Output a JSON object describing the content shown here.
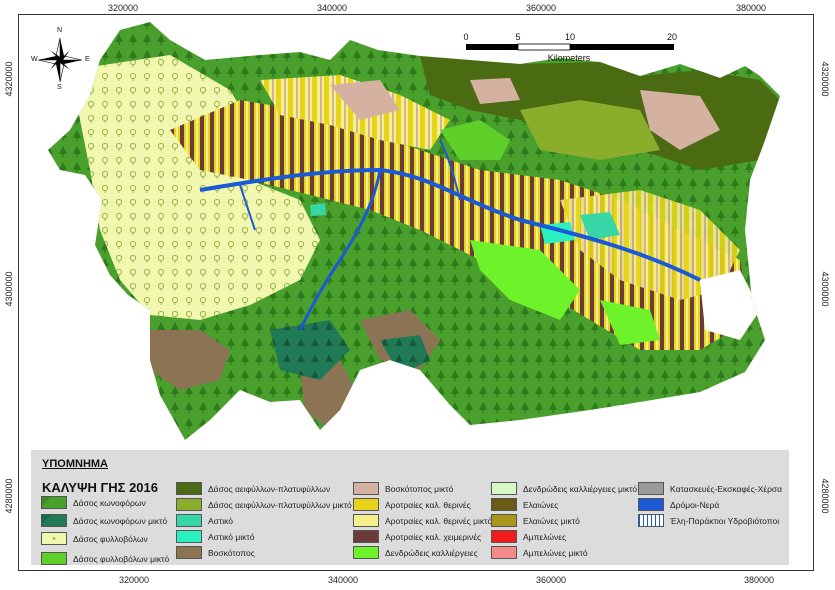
{
  "axes": {
    "x_ticks": [
      "320000",
      "340000",
      "360000",
      "380000"
    ],
    "y_ticks": [
      "4320000",
      "4300000",
      "4280000"
    ]
  },
  "compass": {
    "n": "N",
    "s": "S",
    "e": "E",
    "w": "W"
  },
  "scalebar": {
    "ticks": [
      "0",
      "5",
      "10",
      "20"
    ],
    "unit": "Kilometers"
  },
  "legend": {
    "title": "ΥΠΟΜΝΗΜΑ",
    "subtitle": "ΚΑΛΥΨΗ ΓΗΣ 2016",
    "items": [
      {
        "label": "Δάσος κωνοφόρων",
        "color": "#4aa02c",
        "icon": "tree-icon"
      },
      {
        "label": "Δάσος κωνοφόρων μικτό",
        "color": "#1f7a55",
        "icon": "tree-icon"
      },
      {
        "label": "Δάσος φυλλοβόλων",
        "color": "#f2f7b0",
        "icon": "leaf-icon"
      },
      {
        "label": "Δάσος φυλλοβόλων μικτό",
        "color": "#5fd02a",
        "icon": ""
      },
      {
        "label": "Δάσος αειφύλλων-πλατυφύλλων",
        "color": "#4b6b12",
        "icon": ""
      },
      {
        "label": "Δάσος αειφύλλων-πλατυφύλλων μικτό",
        "color": "#8aad2b",
        "icon": ""
      },
      {
        "label": "Αστικό",
        "color": "#36d6a6",
        "icon": ""
      },
      {
        "label": "Αστικό μικτό",
        "color": "#2af0c0",
        "icon": ""
      },
      {
        "label": "Βοσκότοπος",
        "color": "#8b7354",
        "icon": ""
      },
      {
        "label": "Βοσκότοπος μικτό",
        "color": "#d4b1a0",
        "icon": ""
      },
      {
        "label": "Αροτραίες καλ. θερινές",
        "color": "#e6d31a",
        "icon": ""
      },
      {
        "label": "Αροτραίες καλ. θερινές μικτό",
        "color": "#f4f08a",
        "icon": ""
      },
      {
        "label": "Αροτραίες καλ. χειμερινές",
        "color": "#6b3a3a",
        "icon": ""
      },
      {
        "label": "Δενδρώδεις καλλιέργειες",
        "color": "#6ef22a",
        "icon": ""
      },
      {
        "label": "Δενδρώδεις καλλιέργειες μικτό",
        "color": "#d6f7c6",
        "icon": ""
      },
      {
        "label": "Ελαιώνες",
        "color": "#6a5a14",
        "icon": ""
      },
      {
        "label": "Ελαιώνες μικτό",
        "color": "#a8951c",
        "icon": ""
      },
      {
        "label": "Αμπελώνες",
        "color": "#f21a1a",
        "icon": ""
      },
      {
        "label": "Αμπελώνες μικτό",
        "color": "#f58a8a",
        "icon": ""
      },
      {
        "label": "Κατασκευές-Εκσκαφές-Χέρσα",
        "color": "#9a9a9a",
        "icon": ""
      },
      {
        "label": "Δρόμοι-Νερά",
        "color": "#1a5ad6",
        "icon": ""
      },
      {
        "label": "Έλη-Παράκτιοι Υδροβιότοποι",
        "color": "#ffffff",
        "icon": "marsh-icon"
      }
    ]
  }
}
